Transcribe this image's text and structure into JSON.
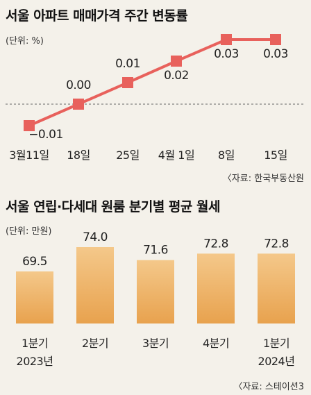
{
  "line_title": "서울 아파트 매매가격 주간 변동률",
  "line_unit": "(단위: %)",
  "line_source": "〈자료: 한국부동산원",
  "bar_title": "서울 연립·다세대 원룸 분기별 평균 월세",
  "bar_unit": "(단위: 만원)",
  "bar_source": "〈자료: 스테이션3",
  "colors": {
    "line": "#e8615c",
    "marker": "#e8615c",
    "bar_top": "#f4c88a",
    "bar_bottom": "#e8a24e",
    "background": "#f4f1ea"
  },
  "chart_data": [
    {
      "type": "line",
      "title": "서울 아파트 매매가격 주간 변동률",
      "ylabel": "(단위: %)",
      "categories": [
        "3월11일",
        "18일",
        "25일",
        "4월 1일",
        "8일",
        "15일"
      ],
      "values": [
        -0.01,
        0.0,
        0.01,
        0.02,
        0.03,
        0.03
      ],
      "value_labels": [
        "−0.01",
        "0.00",
        "0.01",
        "0.02",
        "0.03",
        "0.03"
      ],
      "ylim": [
        -0.01,
        0.03
      ],
      "reference_line": 0,
      "grid": false
    },
    {
      "type": "bar",
      "title": "서울 연립·다세대 원룸 분기별 평균 월세",
      "ylabel": "(단위: 만원)",
      "categories": [
        [
          "1분기",
          "2023년"
        ],
        [
          "2분기"
        ],
        [
          "3분기"
        ],
        [
          "4분기"
        ],
        [
          "1분기",
          "2024년"
        ]
      ],
      "values": [
        69.5,
        74.0,
        71.6,
        72.8,
        72.8
      ],
      "value_labels": [
        "69.5",
        "74.0",
        "71.6",
        "72.8",
        "72.8"
      ],
      "grid": false
    }
  ]
}
